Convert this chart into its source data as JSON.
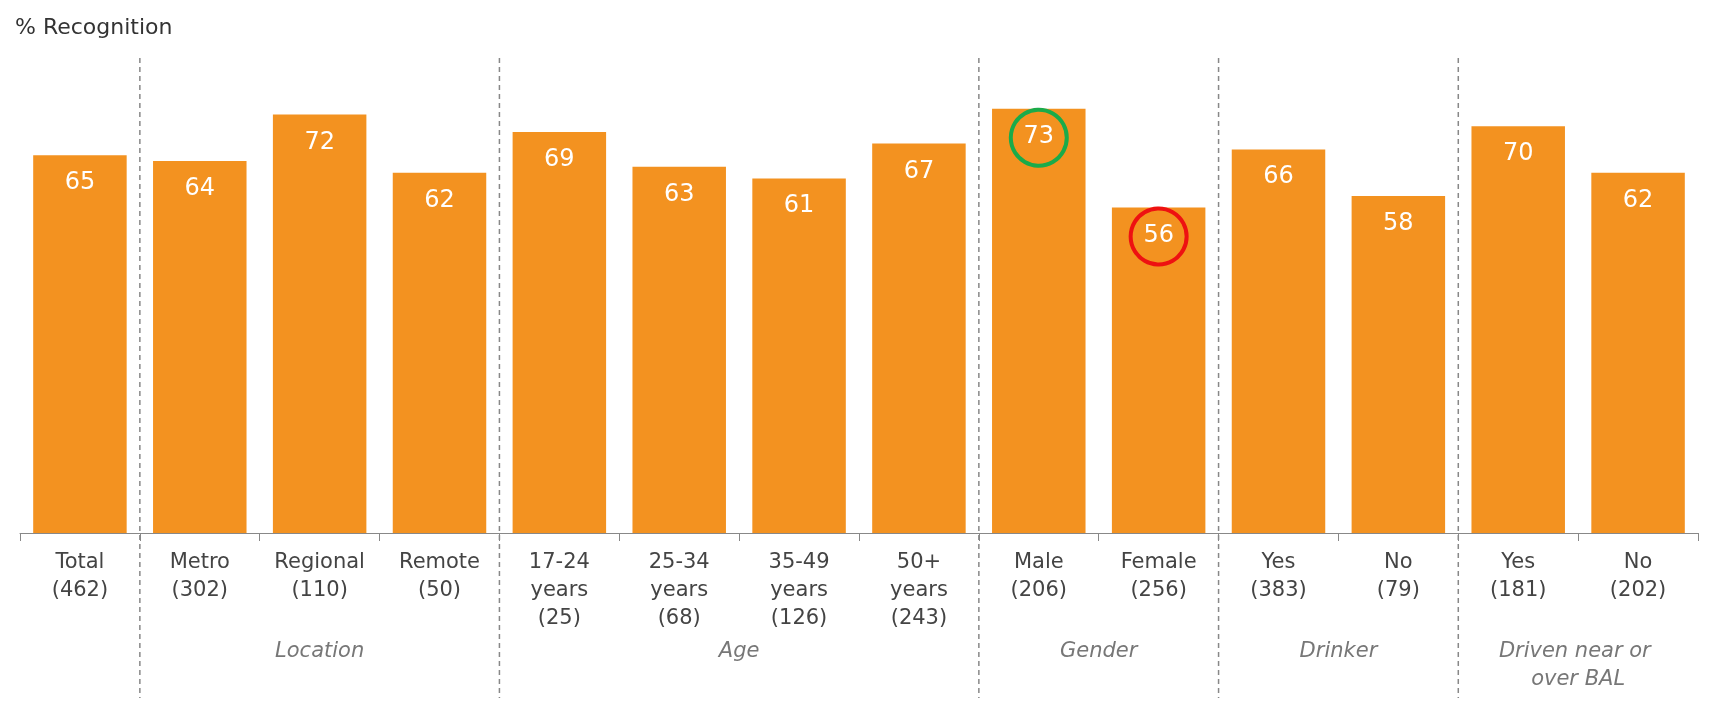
{
  "chart_data": {
    "type": "bar",
    "title": "% Recognition",
    "categories": [
      "Total (462)",
      "Metro (302)",
      "Regional (110)",
      "Remote (50)",
      "17-24 years (25)",
      "25-34 years (68)",
      "35-49 years (126)",
      "50+ years (243)",
      "Male (206)",
      "Female (256)",
      "Yes (383)",
      "No (79)",
      "Yes (181)",
      "No (202)"
    ],
    "values": [
      65,
      64,
      72,
      62,
      69,
      63,
      61,
      67,
      73,
      56,
      66,
      58,
      70,
      62
    ],
    "color": "#f39220",
    "data_labels": true,
    "annotations": [
      "Location",
      "Age",
      "Gender",
      "Drinker",
      "Driven near or over BAL"
    ]
  }
}
